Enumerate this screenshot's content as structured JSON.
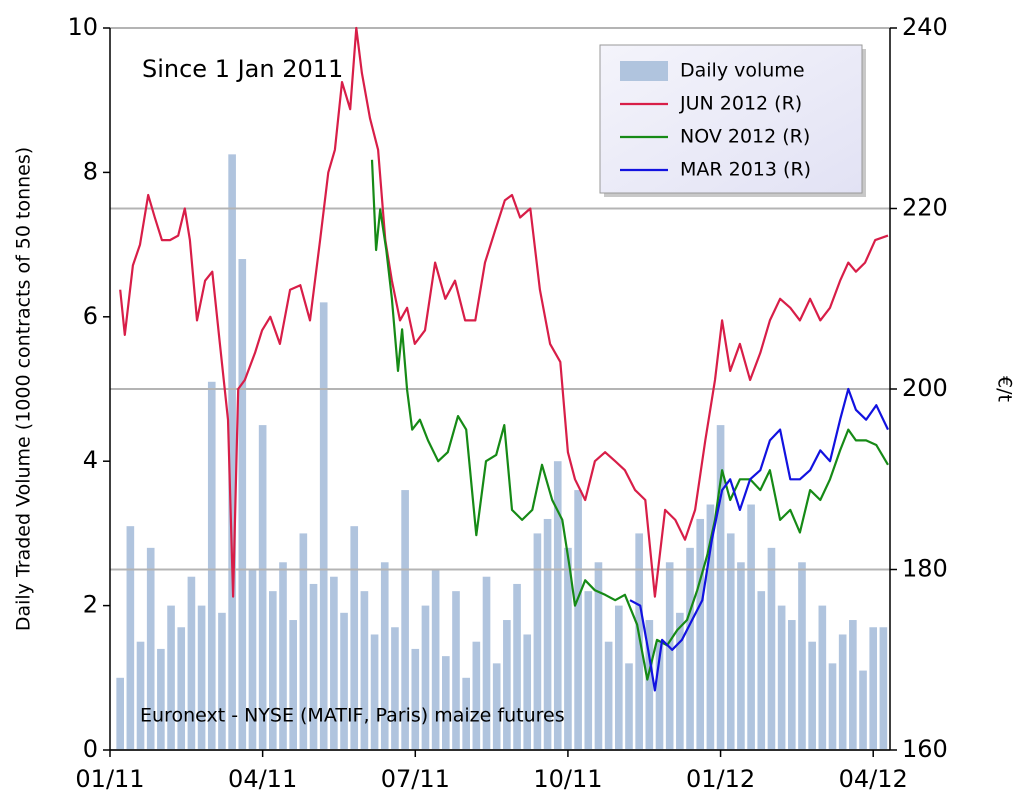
{
  "chart_data": {
    "type": "bar-line",
    "annotations": [
      "Since 1 Jan 2011",
      "Euronext - NYSE (MATIF, Paris) maize futures"
    ],
    "ylabel": "Daily Traded Volume (1000 contracts of 50 tonnes)",
    "y2label": "€/t",
    "legend": "upper right",
    "grid": true,
    "xlim": [
      0,
      15.33
    ],
    "xticks": [
      {
        "value": 0,
        "label": "01/11"
      },
      {
        "value": 3,
        "label": "04/11"
      },
      {
        "value": 6,
        "label": "07/11"
      },
      {
        "value": 9,
        "label": "10/11"
      },
      {
        "value": 12,
        "label": "01/12"
      },
      {
        "value": 15,
        "label": "04/12"
      }
    ],
    "ylim": [
      0,
      10
    ],
    "yticks": [
      0,
      2,
      4,
      6,
      8,
      10
    ],
    "y2lim": [
      160,
      240
    ],
    "y2ticks": [
      160,
      180,
      200,
      220,
      240
    ],
    "series": [
      {
        "name": "Daily volume",
        "type": "bar",
        "color": "#b0c4de",
        "x": [
          0.2,
          0.4,
          0.6,
          0.8,
          1.0,
          1.2,
          1.4,
          1.6,
          1.8,
          2.0,
          2.2,
          2.4,
          2.6,
          2.8,
          3.0,
          3.2,
          3.4,
          3.6,
          3.8,
          4.0,
          4.2,
          4.4,
          4.6,
          4.8,
          5.0,
          5.2,
          5.4,
          5.6,
          5.8,
          6.0,
          6.2,
          6.4,
          6.6,
          6.8,
          7.0,
          7.2,
          7.4,
          7.6,
          7.8,
          8.0,
          8.2,
          8.4,
          8.6,
          8.8,
          9.0,
          9.2,
          9.4,
          9.6,
          9.8,
          10.0,
          10.2,
          10.4,
          10.6,
          10.8,
          11.0,
          11.2,
          11.4,
          11.6,
          11.8,
          12.0,
          12.2,
          12.4,
          12.6,
          12.8,
          13.0,
          13.2,
          13.4,
          13.6,
          13.8,
          14.0,
          14.2,
          14.4,
          14.6,
          14.8,
          15.0,
          15.2
        ],
        "values": [
          1.0,
          3.1,
          1.5,
          2.8,
          1.4,
          2.0,
          1.7,
          2.4,
          2.0,
          5.1,
          1.9,
          8.25,
          6.8,
          2.5,
          4.5,
          2.2,
          2.6,
          1.8,
          3.0,
          2.3,
          6.2,
          2.4,
          1.9,
          3.1,
          2.2,
          1.6,
          2.6,
          1.7,
          3.6,
          1.4,
          2.0,
          2.5,
          1.3,
          2.2,
          1.0,
          1.5,
          2.4,
          1.2,
          1.8,
          2.3,
          1.6,
          3.0,
          3.2,
          4.0,
          2.8,
          3.6,
          2.2,
          2.6,
          1.5,
          2.0,
          1.2,
          3.0,
          1.8,
          1.5,
          2.6,
          1.9,
          2.8,
          3.2,
          3.4,
          4.5,
          3.0,
          2.6,
          3.4,
          2.2,
          2.8,
          2.0,
          1.8,
          2.6,
          1.5,
          2.0,
          1.2,
          1.6,
          1.8,
          1.1,
          1.7,
          1.7
        ]
      },
      {
        "name": "JUN 2012 (R)",
        "type": "line",
        "axis": "y2",
        "color": "#d81e48",
        "x": [
          0.2,
          0.29,
          0.45,
          0.59,
          0.75,
          0.88,
          1.02,
          1.18,
          1.34,
          1.47,
          1.57,
          1.71,
          1.87,
          2.01,
          2.16,
          2.32,
          2.42,
          2.52,
          2.65,
          2.85,
          2.99,
          3.15,
          3.34,
          3.54,
          3.74,
          3.93,
          4.13,
          4.29,
          4.42,
          4.56,
          4.72,
          4.84,
          4.95,
          5.11,
          5.27,
          5.41,
          5.54,
          5.7,
          5.84,
          5.99,
          6.19,
          6.39,
          6.59,
          6.78,
          6.98,
          7.18,
          7.37,
          7.57,
          7.76,
          7.9,
          8.06,
          8.26,
          8.45,
          8.65,
          8.85,
          9.0,
          9.14,
          9.34,
          9.53,
          9.73,
          9.93,
          10.12,
          10.32,
          10.52,
          10.71,
          10.91,
          11.11,
          11.3,
          11.5,
          11.7,
          11.89,
          12.03,
          12.19,
          12.38,
          12.58,
          12.78,
          12.97,
          13.17,
          13.37,
          13.56,
          13.76,
          13.96,
          14.15,
          14.35,
          14.51,
          14.66,
          14.84,
          15.04,
          15.29
        ],
        "values": [
          211,
          206,
          213.7,
          216,
          221.5,
          219,
          216.5,
          216.5,
          217,
          220,
          216.5,
          207.6,
          212,
          213,
          205,
          196.6,
          177,
          200,
          201,
          204,
          206.5,
          208,
          205,
          211,
          211.5,
          207.6,
          216.5,
          224,
          226.5,
          234,
          231,
          240,
          235,
          230,
          226.5,
          216.5,
          212,
          207.6,
          209,
          205,
          206.5,
          214,
          210,
          212,
          207.6,
          207.6,
          214,
          217.6,
          220.9,
          221.5,
          219,
          220,
          211,
          205,
          203,
          193,
          190,
          187.7,
          192,
          193,
          192,
          191,
          188.8,
          187.7,
          177,
          186.6,
          185.5,
          183.3,
          186.6,
          194.3,
          201,
          207.6,
          202,
          205,
          201,
          204,
          207.6,
          210,
          209,
          207.6,
          210,
          207.6,
          209,
          212,
          214,
          213,
          214,
          216.5,
          217
        ]
      },
      {
        "name": "NOV 2012 (R)",
        "type": "line",
        "axis": "y2",
        "color": "#168a16",
        "x": [
          5.15,
          5.23,
          5.31,
          5.43,
          5.54,
          5.66,
          5.74,
          5.84,
          5.94,
          6.09,
          6.25,
          6.45,
          6.64,
          6.84,
          7.0,
          7.2,
          7.39,
          7.59,
          7.75,
          7.9,
          8.1,
          8.3,
          8.49,
          8.69,
          8.89,
          9.04,
          9.14,
          9.34,
          9.53,
          9.73,
          9.93,
          10.12,
          10.36,
          10.56,
          10.75,
          10.95,
          11.15,
          11.34,
          11.54,
          11.74,
          11.89,
          12.03,
          12.19,
          12.38,
          12.58,
          12.78,
          12.97,
          13.17,
          13.37,
          13.56,
          13.76,
          13.96,
          14.15,
          14.35,
          14.51,
          14.66,
          14.86,
          15.06,
          15.29
        ],
        "values": [
          225.4,
          215.4,
          219.9,
          215.4,
          210,
          202,
          206.6,
          199.9,
          195.5,
          196.6,
          194.3,
          192,
          193,
          197,
          195.5,
          183.8,
          192,
          192.7,
          196,
          186.6,
          185.5,
          186.6,
          191.6,
          187.7,
          185.5,
          180,
          176,
          178.8,
          177.7,
          177.2,
          176.6,
          177.2,
          173.9,
          167.8,
          172.2,
          171.6,
          173.3,
          174.4,
          177.7,
          181.6,
          185.5,
          191,
          187.7,
          190,
          190,
          188.8,
          191,
          185.5,
          186.6,
          184.1,
          188.8,
          187.7,
          190,
          193.2,
          195.5,
          194.3,
          194.3,
          193.8,
          191.6
        ]
      },
      {
        "name": "MAR 2013 (R)",
        "type": "line",
        "axis": "y2",
        "color": "#1212e0",
        "x": [
          10.22,
          10.42,
          10.58,
          10.71,
          10.85,
          11.05,
          11.24,
          11.44,
          11.64,
          11.83,
          12.03,
          12.19,
          12.38,
          12.58,
          12.78,
          12.97,
          13.17,
          13.37,
          13.56,
          13.76,
          13.96,
          14.15,
          14.35,
          14.51,
          14.66,
          14.86,
          15.06,
          15.29
        ],
        "values": [
          176.6,
          176,
          171,
          166.6,
          172.2,
          171.1,
          172.2,
          174.4,
          176.6,
          183.3,
          188.8,
          190,
          186.6,
          190,
          191,
          194.3,
          195.5,
          190,
          190,
          191,
          193.2,
          192,
          196.6,
          200,
          197.7,
          196.6,
          198.2,
          195.5
        ]
      }
    ]
  }
}
